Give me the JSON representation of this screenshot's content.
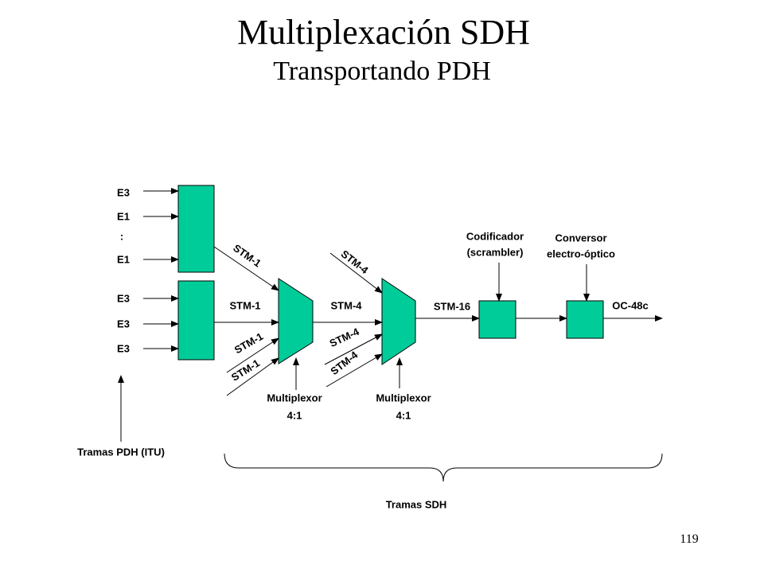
{
  "header": {
    "title": "Multiplexación SDH",
    "subtitle": "Transportando PDH"
  },
  "pdh_inputs": [
    "E3",
    "E1",
    ":",
    "E1",
    "E3",
    "E3",
    "E3"
  ],
  "stm1_links": [
    "STM-1",
    "STM-1",
    "STM-1",
    "STM-1"
  ],
  "stm4_links": [
    "STM-4",
    "STM-4",
    "STM-4",
    "STM-4"
  ],
  "stm16_link": "STM-16",
  "output": "OC-48c",
  "multiplexers": [
    {
      "line1": "Multiplexor",
      "line2": "4:1"
    },
    {
      "line1": "Multiplexor",
      "line2": "4:1"
    }
  ],
  "scrambler": {
    "line1": "Codificador",
    "line2": "(scrambler)"
  },
  "converter": {
    "line1": "Conversor",
    "line2": "electro-óptico"
  },
  "pdh_caption": "Tramas PDH (ITU)",
  "sdh_caption": "Tramas SDH",
  "page_number": "119"
}
